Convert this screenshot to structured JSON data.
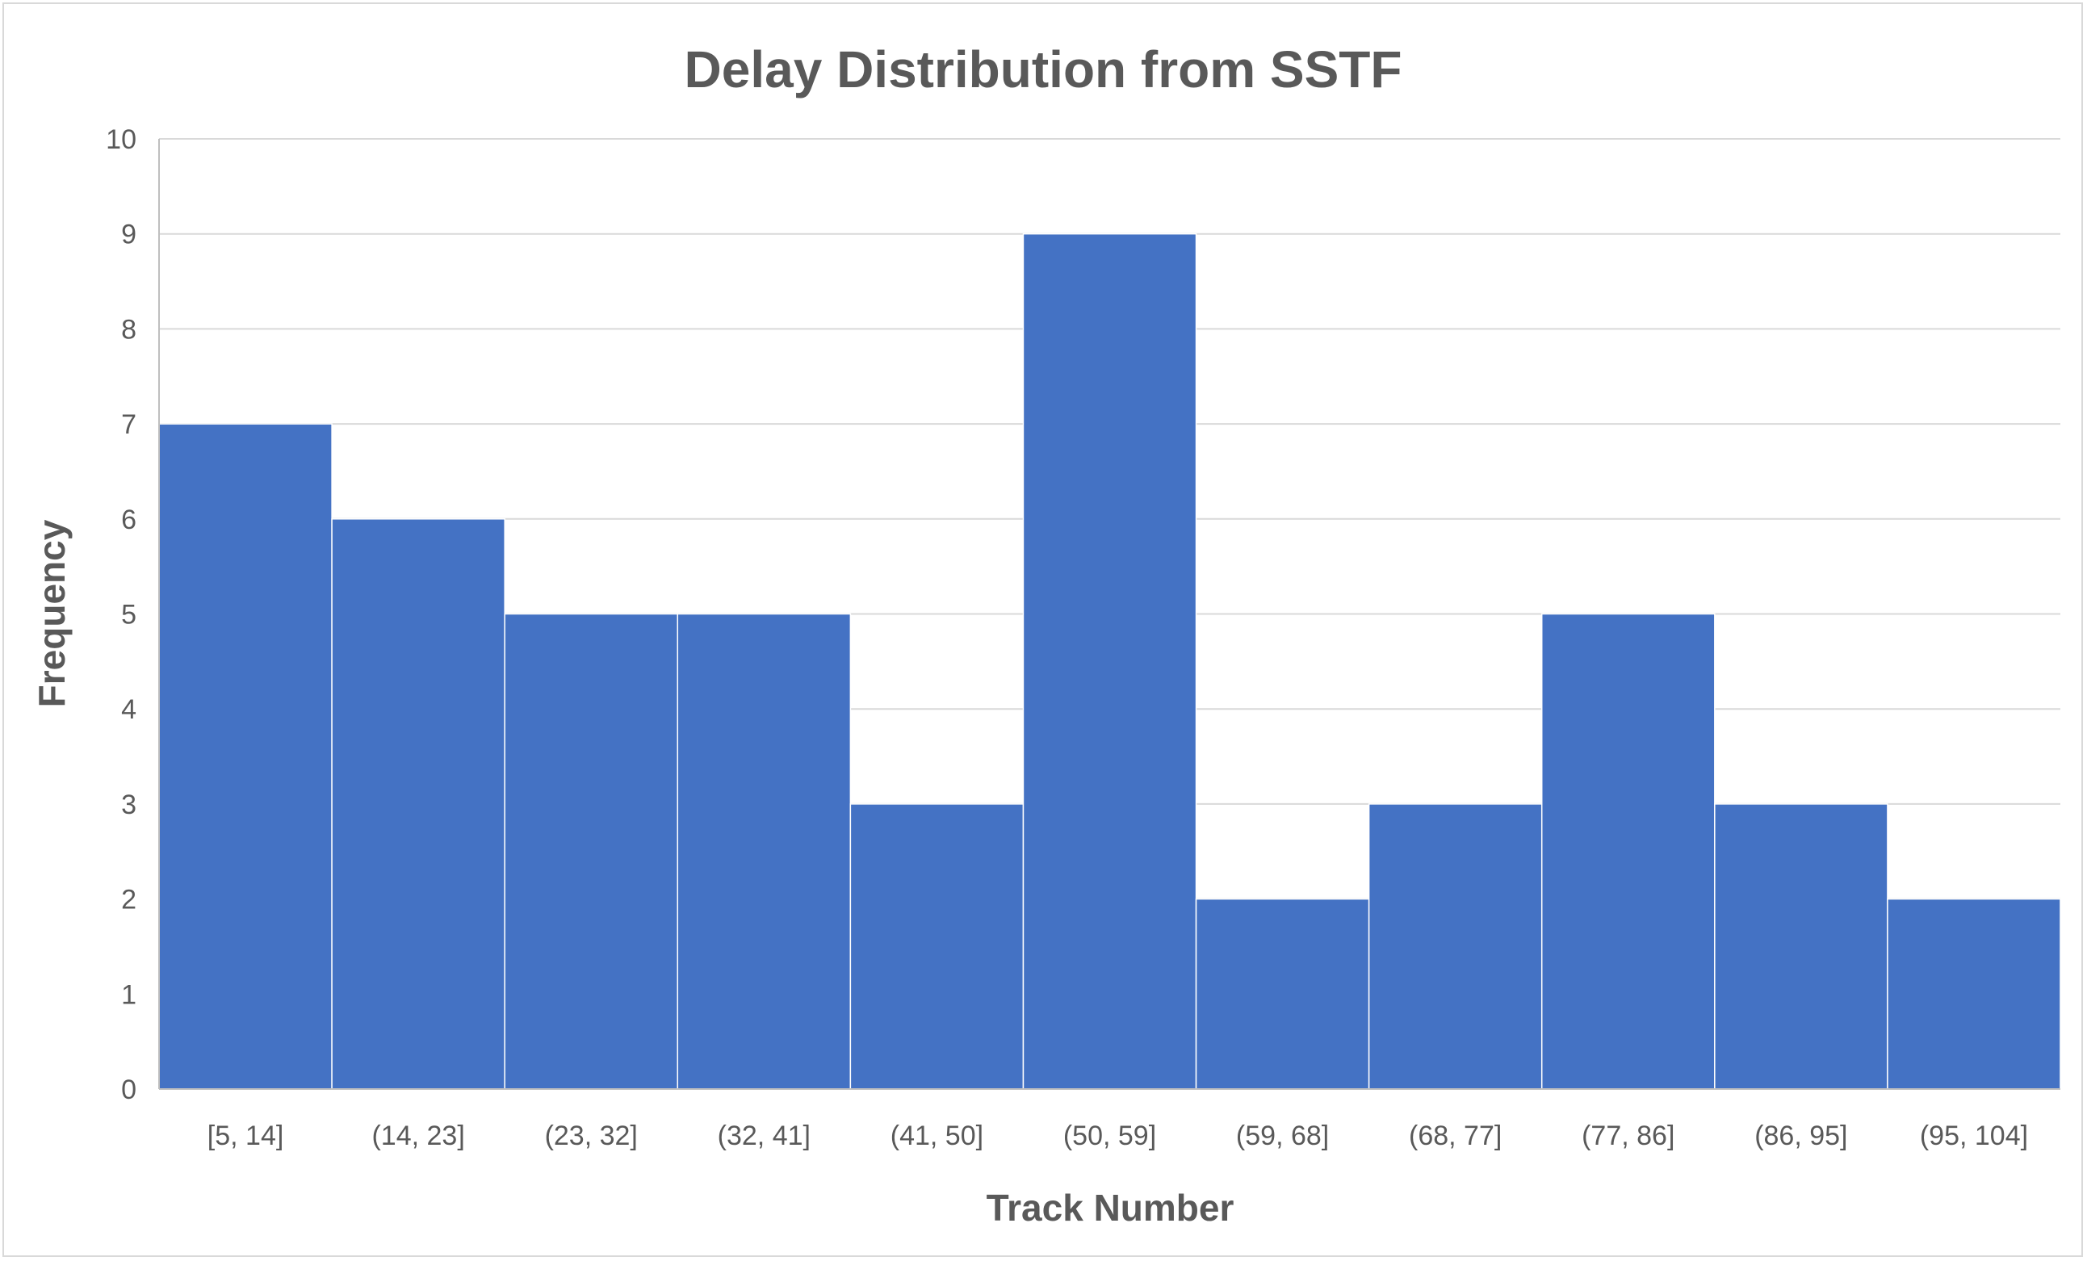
{
  "chart_data": {
    "type": "bar",
    "title": "Delay Distribution from SSTF",
    "xlabel": "Track Number",
    "ylabel": "Frequency",
    "categories": [
      "[5, 14]",
      "(14, 23]",
      "(23, 32]",
      "(32, 41]",
      "(41, 50]",
      "(50, 59]",
      "(59, 68]",
      "(68, 77]",
      "(77, 86]",
      "(86, 95]",
      "(95, 104]"
    ],
    "values": [
      7,
      6,
      5,
      5,
      3,
      9,
      2,
      3,
      5,
      3,
      2
    ],
    "ylim": [
      0,
      10
    ],
    "yticks": [
      0,
      1,
      2,
      3,
      4,
      5,
      6,
      7,
      8,
      9,
      10
    ],
    "grid": true,
    "legend": "none",
    "bar_color": "#4472C4",
    "bar_gap": 0
  }
}
